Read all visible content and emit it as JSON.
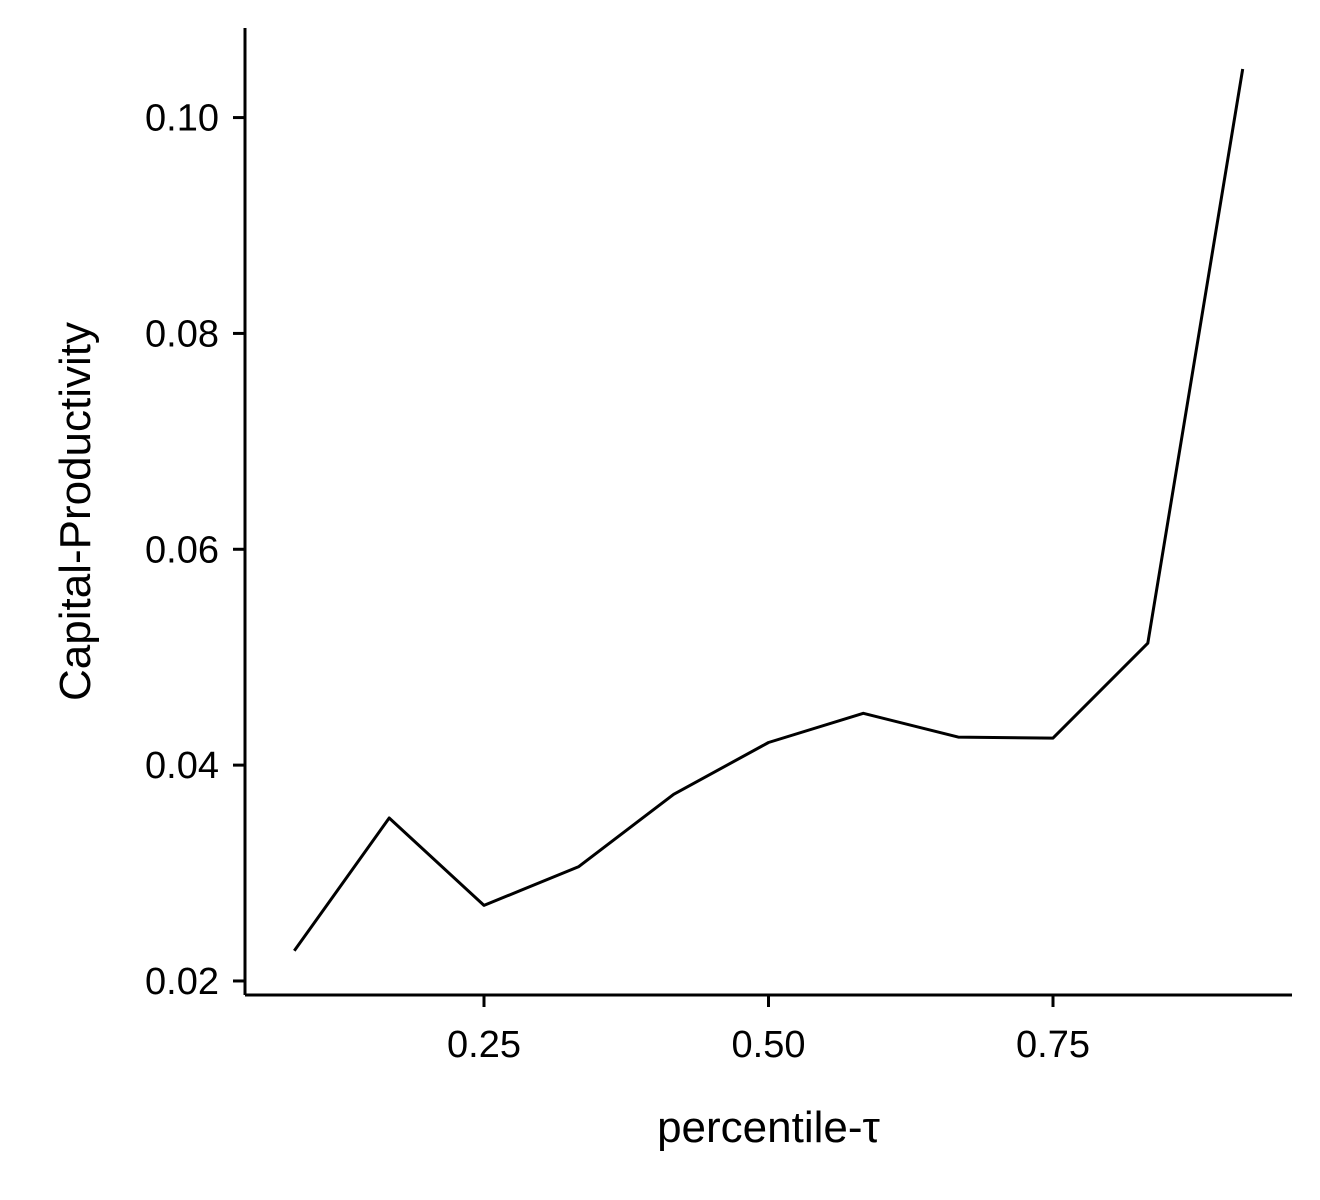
{
  "chart_data": {
    "type": "line",
    "xlabel": "percentile-τ",
    "ylabel": "Capital-Productivity",
    "xlim": [
      0.04,
      0.96
    ],
    "ylim": [
      0.0187,
      0.1083
    ],
    "x_ticks": [
      {
        "value": 0.25,
        "label": "0.25"
      },
      {
        "value": 0.5,
        "label": "0.50"
      },
      {
        "value": 0.75,
        "label": "0.75"
      }
    ],
    "y_ticks": [
      {
        "value": 0.02,
        "label": "0.02"
      },
      {
        "value": 0.04,
        "label": "0.04"
      },
      {
        "value": 0.06,
        "label": "0.06"
      },
      {
        "value": 0.08,
        "label": "0.08"
      },
      {
        "value": 0.1,
        "label": "0.10"
      }
    ],
    "grid": false,
    "legend": "none",
    "series": [
      {
        "color": "#000000",
        "x": [
          0.0833,
          0.1667,
          0.25,
          0.3333,
          0.4167,
          0.5,
          0.5833,
          0.6667,
          0.75,
          0.8333,
          0.9167
        ],
        "y": [
          0.0228,
          0.0351,
          0.027,
          0.0306,
          0.0373,
          0.0421,
          0.0448,
          0.0426,
          0.0425,
          0.0513,
          0.1045
        ]
      }
    ]
  }
}
